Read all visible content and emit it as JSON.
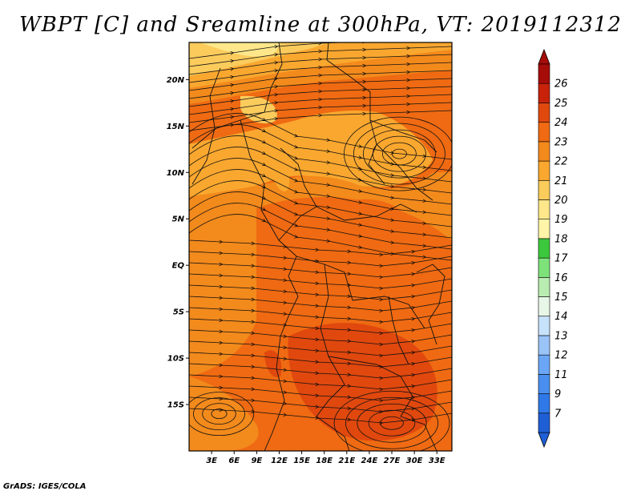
{
  "title": "WBPT [C] and Sreamline at 300hPa, VT: 2019112312",
  "footer": "GrADS: IGES/COLA",
  "map": {
    "lon_range": [
      0,
      35
    ],
    "lat_range": [
      -20,
      24
    ],
    "lon_ticks": [
      "3E",
      "6E",
      "9E",
      "12E",
      "15E",
      "18E",
      "21E",
      "24E",
      "27E",
      "30E",
      "33E"
    ],
    "lon_values": [
      3,
      6,
      9,
      12,
      15,
      18,
      21,
      24,
      27,
      30,
      33
    ],
    "lat_ticks": [
      "20N",
      "15N",
      "10N",
      "5N",
      "EQ",
      "5S",
      "10S",
      "15S"
    ],
    "lat_values": [
      20,
      15,
      10,
      5,
      0,
      -5,
      -10,
      -15
    ]
  },
  "colorbar": {
    "labels": [
      "7",
      "9",
      "11",
      "12",
      "13",
      "14",
      "15",
      "16",
      "17",
      "18",
      "19",
      "20",
      "21",
      "22",
      "23",
      "24",
      "25",
      "26"
    ],
    "colors": [
      "#1f5fd6",
      "#2f78e8",
      "#4a8ff0",
      "#6aa6f5",
      "#9ac4f8",
      "#c7e2fb",
      "#e8f6e8",
      "#b8ecb0",
      "#7ee27a",
      "#3cc83c",
      "#fff5a8",
      "#fde78a",
      "#fbcb5c",
      "#f9a72f",
      "#f38a1c",
      "#ef6a12",
      "#e0480e",
      "#c8220a",
      "#a60c08"
    ],
    "upper_color": "#a60c08",
    "lower_color": "#1f5fd6"
  },
  "field_colors": {
    "t19": "#fde78a",
    "t20": "#fbcb5c",
    "t21": "#f9a72f",
    "t22": "#f38a1c",
    "t23": "#ef6a12",
    "t24": "#e0480e"
  }
}
